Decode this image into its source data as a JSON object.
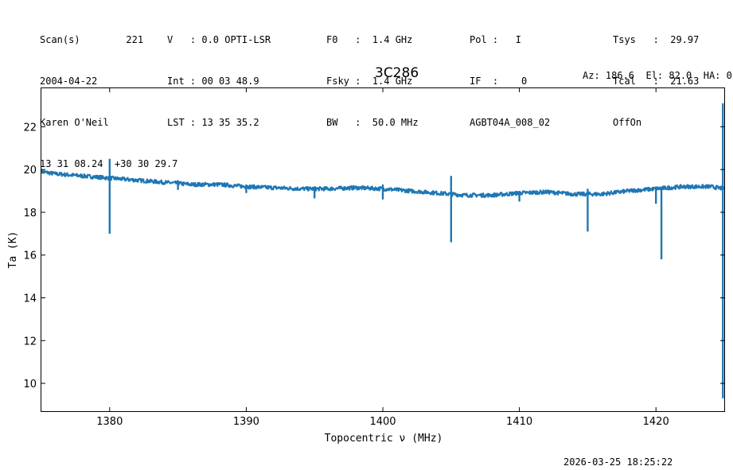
{
  "header": {
    "col1": [
      "Scan(s)        221",
      "2004-04-22",
      "Karen O'Neil",
      "13 31 08.24  +30 30 29.7"
    ],
    "col2": [
      "V   : 0.0 OPTI-LSR",
      "Int : 00 03 48.9",
      "LST : 13 35 35.2"
    ],
    "col3": [
      "F0   :  1.4 GHz",
      "Fsky :  1.4 GHz",
      "BW   :  50.0 MHz"
    ],
    "col4": [
      "Pol :   I",
      "IF  :    0",
      "AGBT04A_008_02"
    ],
    "col5": [
      "Tsys   :  29.97",
      "Tcal   :  21.63",
      "OffOn"
    ],
    "source": "3C286",
    "azel": "Az: 186.6  El: 82.0  HA: 0",
    "timestamp": "2026-03-25 18:25:22"
  },
  "chart_data": {
    "type": "line",
    "title": "3C286",
    "xlabel": "Topocentric ν (MHz)",
    "ylabel": "Ta (K)",
    "xlim": [
      1375,
      1425
    ],
    "ylim": [
      8.7,
      23.8
    ],
    "xticks": [
      1380,
      1390,
      1400,
      1410,
      1420
    ],
    "yticks": [
      10,
      12,
      14,
      16,
      18,
      20,
      22
    ],
    "color": "#1f77b4",
    "grid": false,
    "baseline": {
      "x": [
        1375,
        1376,
        1378,
        1380,
        1382,
        1384,
        1386,
        1388,
        1390,
        1392,
        1394,
        1396,
        1398,
        1400,
        1402,
        1404,
        1406,
        1408,
        1410,
        1412,
        1414,
        1416,
        1418,
        1420,
        1422,
        1424,
        1425
      ],
      "y": [
        19.9,
        19.8,
        19.7,
        19.6,
        19.5,
        19.4,
        19.3,
        19.3,
        19.2,
        19.15,
        19.1,
        19.1,
        19.15,
        19.1,
        19.0,
        18.9,
        18.8,
        18.8,
        18.9,
        18.95,
        18.85,
        18.85,
        19.0,
        19.1,
        19.2,
        19.2,
        19.1
      ]
    },
    "spikes": [
      {
        "x": 1380.0,
        "min": 17.0,
        "max": 20.5
      },
      {
        "x": 1385.0,
        "min": 19.05,
        "max": 19.5
      },
      {
        "x": 1390.0,
        "min": 18.9,
        "max": 19.3
      },
      {
        "x": 1395.0,
        "min": 18.65,
        "max": 19.2
      },
      {
        "x": 1400.0,
        "min": 18.6,
        "max": 19.3
      },
      {
        "x": 1405.0,
        "min": 16.6,
        "max": 19.7
      },
      {
        "x": 1410.0,
        "min": 18.5,
        "max": 19.0
      },
      {
        "x": 1415.0,
        "min": 17.1,
        "max": 19.1
      },
      {
        "x": 1420.0,
        "min": 18.4,
        "max": 19.2
      },
      {
        "x": 1420.4,
        "min": 15.8,
        "max": 19.2
      },
      {
        "x": 1424.9,
        "min": 9.3,
        "max": 23.1
      }
    ]
  }
}
